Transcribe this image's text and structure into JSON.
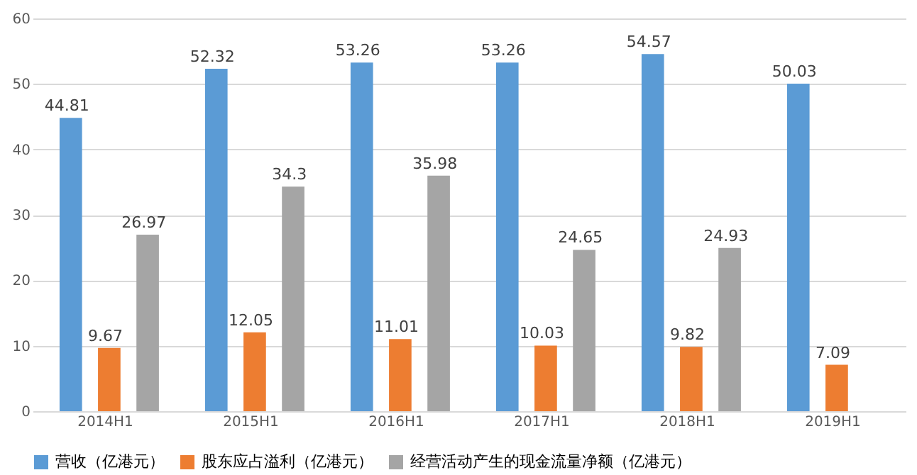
{
  "chart_data": {
    "type": "bar",
    "categories": [
      "2014H1",
      "2015H1",
      "2016H1",
      "2017H1",
      "2018H1",
      "2019H1"
    ],
    "series": [
      {
        "name": "营收（亿港元）",
        "color": "#5b9bd5",
        "values": [
          44.81,
          52.32,
          53.26,
          53.26,
          54.57,
          50.03
        ]
      },
      {
        "name": "股东应占溢利（亿港元）",
        "color": "#ed7d31",
        "values": [
          9.67,
          12.05,
          11.01,
          10.03,
          9.82,
          7.09
        ]
      },
      {
        "name": "经营活动产生的现金流量净额（亿港元）",
        "color": "#a5a5a5",
        "values": [
          26.97,
          34.3,
          35.98,
          24.65,
          24.93,
          null
        ]
      }
    ],
    "ylim": [
      0,
      60
    ],
    "yticks": [
      0,
      10,
      20,
      30,
      40,
      50,
      60
    ],
    "grid": "y",
    "legend": "bottom",
    "data_labels": true
  }
}
